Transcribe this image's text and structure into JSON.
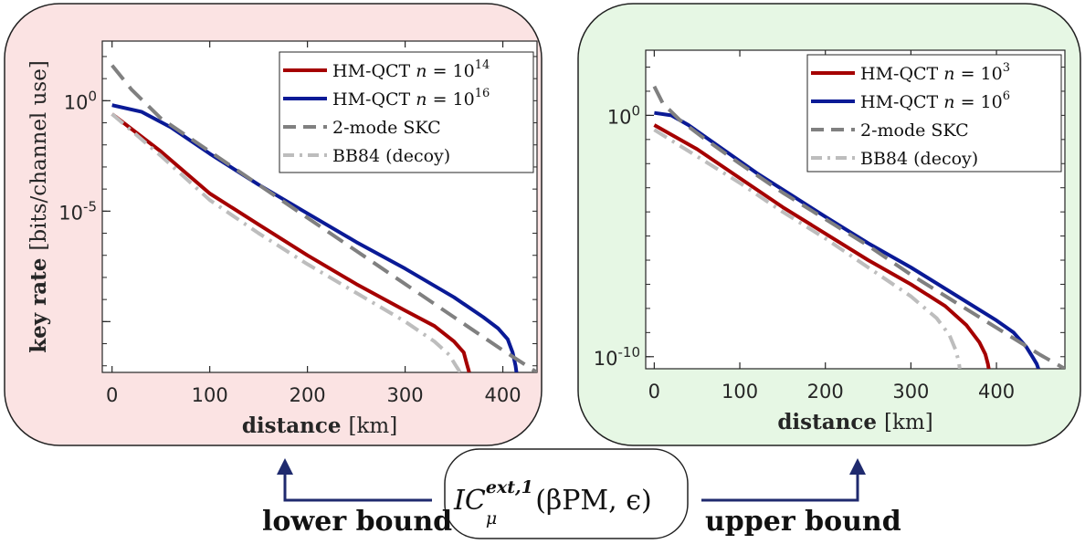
{
  "colors": {
    "left_panel_bg": "#fbe3e3",
    "right_panel_bg": "#e6f7e4",
    "red_series": "#a50000",
    "blue_series": "#0a1a96",
    "skc_series": "#808080",
    "bb84_series": "#bdbdbd",
    "arrow": "#1f2a6e"
  },
  "labels": {
    "formula": "IC_μ^{ext,1}(βPM, ε)",
    "formula_main": "IC",
    "formula_sub": "μ",
    "formula_sup": "ext,1",
    "formula_args": "(βPM, ϵ)",
    "lower": "lower bound",
    "upper": "upper bound"
  },
  "chart_data": [
    {
      "type": "line",
      "title": "",
      "xlabel_bold": "distance",
      "xlabel_unit": "[km]",
      "ylabel_bold": "key rate",
      "ylabel_unit": "[bits/channel use]",
      "y_scale": "log",
      "xlim": [
        -10,
        435
      ],
      "ylim_log10": [
        -12.3,
        2.7
      ],
      "x_ticks": [
        0,
        100,
        200,
        300,
        400
      ],
      "x_tick_labels": [
        "0",
        "100",
        "200",
        "300",
        "400"
      ],
      "y_ticks_log10": [
        0,
        -5,
        -10
      ],
      "y_tick_labels": [
        "10^0",
        "10^-5",
        ""
      ],
      "legend_position": "top-right",
      "series": [
        {
          "name": "HM-QCT n = 10^14",
          "label_text": "HM-QCT",
          "exp": "14",
          "color": "#a50000",
          "style": "solid",
          "x": [
            0,
            50,
            100,
            150,
            200,
            250,
            300,
            330,
            350,
            360,
            363,
            365,
            365.5
          ],
          "log10_y": [
            -0.6,
            -2.3,
            -4.2,
            -5.6,
            -7.0,
            -8.3,
            -9.5,
            -10.2,
            -10.9,
            -11.4,
            -11.9,
            -12.2,
            -12.3
          ]
        },
        {
          "name": "HM-QCT n = 10^16",
          "label_text": "HM-QCT",
          "exp": "16",
          "color": "#0a1a96",
          "style": "solid",
          "x": [
            0,
            30,
            60,
            100,
            150,
            200,
            250,
            300,
            350,
            380,
            395,
            405,
            410,
            413,
            414
          ],
          "log10_y": [
            -0.2,
            -0.5,
            -1.2,
            -2.4,
            -3.8,
            -5.1,
            -6.4,
            -7.6,
            -8.9,
            -9.8,
            -10.3,
            -10.8,
            -11.4,
            -12.0,
            -12.3
          ]
        },
        {
          "name": "2-mode SKC",
          "label_text": "2-mode SKC",
          "color": "#808080",
          "style": "dashed",
          "x": [
            0,
            20,
            50,
            100,
            150,
            200,
            250,
            300,
            350,
            400,
            435
          ],
          "log10_y": [
            1.6,
            0.5,
            -0.8,
            -2.3,
            -3.8,
            -5.3,
            -6.8,
            -8.3,
            -9.8,
            -11.3,
            -12.3
          ]
        },
        {
          "name": "BB84 (decoy)",
          "label_text": "BB84 (decoy)",
          "color": "#bdbdbd",
          "style": "dashdot",
          "x": [
            0,
            50,
            100,
            150,
            200,
            250,
            300,
            330,
            345,
            352,
            355,
            356
          ],
          "log10_y": [
            -0.6,
            -2.5,
            -4.5,
            -6.0,
            -7.4,
            -8.7,
            -10.0,
            -10.9,
            -11.5,
            -12.0,
            -12.2,
            -12.3
          ]
        }
      ]
    },
    {
      "type": "line",
      "title": "",
      "xlabel_bold": "distance",
      "xlabel_unit": "[km]",
      "ylabel_bold": "",
      "ylabel_unit": "",
      "y_scale": "log",
      "xlim": [
        -10,
        480
      ],
      "ylim_log10": [
        -10.5,
        2.7
      ],
      "x_ticks": [
        0,
        100,
        200,
        300,
        400
      ],
      "x_tick_labels": [
        "0",
        "100",
        "200",
        "300",
        "400"
      ],
      "y_ticks_log10": [
        0,
        -10
      ],
      "y_tick_labels": [
        "10^0",
        "10^-10"
      ],
      "legend_position": "top-right",
      "series": [
        {
          "name": "HM-QCT n = 10^3",
          "label_text": "HM-QCT",
          "exp": "3",
          "color": "#a50000",
          "style": "solid",
          "x": [
            0,
            50,
            100,
            150,
            200,
            250,
            300,
            340,
            365,
            380,
            387,
            390,
            391
          ],
          "log10_y": [
            -0.4,
            -1.4,
            -2.6,
            -3.8,
            -4.9,
            -6.0,
            -7.0,
            -7.9,
            -8.7,
            -9.4,
            -9.9,
            -10.3,
            -10.5
          ]
        },
        {
          "name": "HM-QCT n = 10^6",
          "label_text": "HM-QCT",
          "exp": "6",
          "color": "#0a1a96",
          "style": "solid",
          "x": [
            0,
            20,
            40,
            80,
            120,
            160,
            200,
            250,
            300,
            350,
            400,
            420,
            435,
            442,
            447,
            449
          ],
          "log10_y": [
            0.1,
            0.0,
            -0.4,
            -1.4,
            -2.4,
            -3.3,
            -4.2,
            -5.3,
            -6.3,
            -7.4,
            -8.5,
            -9.0,
            -9.6,
            -10.0,
            -10.3,
            -10.5
          ]
        },
        {
          "name": "2-mode SKC",
          "label_text": "2-mode SKC",
          "color": "#808080",
          "style": "dashed",
          "x": [
            0,
            10,
            30,
            60,
            100,
            150,
            200,
            250,
            300,
            350,
            400,
            450,
            480
          ],
          "log10_y": [
            1.2,
            0.5,
            -0.2,
            -1.0,
            -2.0,
            -3.2,
            -4.3,
            -5.4,
            -6.6,
            -7.7,
            -8.8,
            -9.9,
            -10.5
          ]
        },
        {
          "name": "BB84 (decoy)",
          "label_text": "BB84 (decoy)",
          "color": "#bdbdbd",
          "style": "dashdot",
          "x": [
            0,
            50,
            100,
            150,
            200,
            250,
            300,
            330,
            345,
            352,
            356,
            357
          ],
          "log10_y": [
            -0.6,
            -1.7,
            -2.8,
            -4.0,
            -5.1,
            -6.3,
            -7.5,
            -8.4,
            -9.1,
            -9.7,
            -10.2,
            -10.5
          ]
        }
      ]
    }
  ]
}
